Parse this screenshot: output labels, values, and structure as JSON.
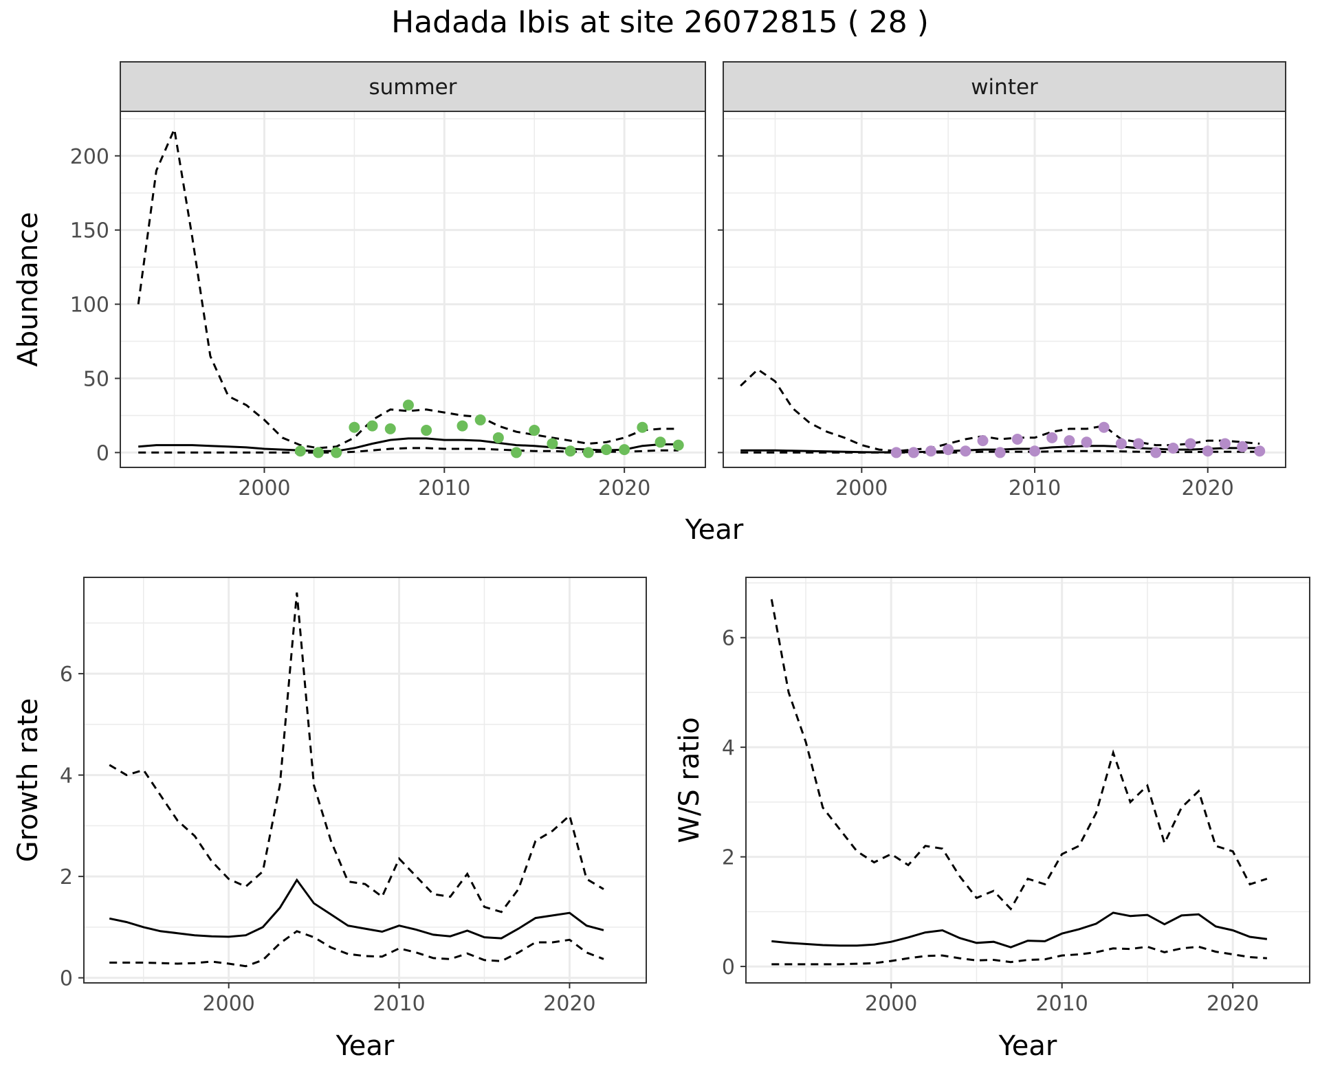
{
  "title": "Hadada Ibis at site 26072815 ( 28 )",
  "colors": {
    "summer_points": "#6cbd5a",
    "winter_points": "#b48cc8",
    "line": "#000000",
    "strip_fill": "#d9d9d9",
    "grid": "#ebebeb"
  },
  "chart_data": [
    {
      "type": "line",
      "panel": "summer",
      "strip_label": "summer",
      "xlabel": "Year",
      "ylabel": "Abundance",
      "xlim": [
        1992,
        2024.5
      ],
      "ylim": [
        -10,
        230
      ],
      "xticks": [
        2000,
        2010,
        2020
      ],
      "yticks": [
        0,
        50,
        100,
        150,
        200
      ],
      "x": [
        1993,
        1994,
        1995,
        1996,
        1997,
        1998,
        1999,
        2000,
        2001,
        2002,
        2003,
        2004,
        2005,
        2006,
        2007,
        2008,
        2009,
        2010,
        2011,
        2012,
        2013,
        2014,
        2015,
        2016,
        2017,
        2018,
        2019,
        2020,
        2021,
        2022,
        2023
      ],
      "series": [
        {
          "role": "estimate",
          "style": "solid",
          "values": [
            4,
            5,
            5,
            5,
            4.5,
            4,
            3.5,
            2.5,
            2,
            1.5,
            1,
            1,
            3,
            6,
            8.5,
            9.5,
            9.5,
            8.5,
            8.5,
            8,
            6.5,
            5,
            4.5,
            3.5,
            2.5,
            2,
            1.5,
            2,
            4.5,
            5.5,
            5.5
          ]
        },
        {
          "role": "upper",
          "style": "dashed",
          "values": [
            100,
            190,
            218,
            145,
            65,
            38,
            32,
            22,
            10,
            5,
            3,
            4,
            10,
            22,
            29,
            28,
            29,
            27,
            25,
            24,
            18,
            14,
            12,
            10,
            8,
            6,
            7,
            10,
            15,
            16,
            16
          ]
        },
        {
          "role": "lower",
          "style": "dashed",
          "values": [
            0,
            0,
            0,
            0,
            0,
            0,
            0,
            0,
            0,
            0,
            0,
            0,
            0.5,
            1.5,
            2.5,
            3,
            3,
            2.5,
            2.5,
            2.5,
            2,
            1.5,
            1,
            1,
            0.5,
            0.5,
            0.5,
            0.5,
            1,
            1.5,
            1.5
          ]
        }
      ],
      "points": {
        "x": [
          2002,
          2003,
          2004,
          2005,
          2006,
          2007,
          2008,
          2009,
          2011,
          2012,
          2013,
          2014,
          2015,
          2016,
          2017,
          2018,
          2019,
          2020,
          2021,
          2022,
          2023
        ],
        "y": [
          1,
          0,
          0,
          17,
          18,
          16,
          32,
          15,
          18,
          22,
          10,
          0,
          15,
          6,
          1,
          0,
          2,
          2,
          17,
          7,
          5
        ]
      }
    },
    {
      "type": "line",
      "panel": "winter",
      "strip_label": "winter",
      "xlabel": "Year",
      "xlim": [
        1992,
        2024.5
      ],
      "ylim": [
        -10,
        230
      ],
      "xticks": [
        2000,
        2010,
        2020
      ],
      "yticks": [
        0,
        50,
        100,
        150,
        200
      ],
      "x": [
        1993,
        1994,
        1995,
        1996,
        1997,
        1998,
        1999,
        2000,
        2001,
        2002,
        2003,
        2004,
        2005,
        2006,
        2007,
        2008,
        2009,
        2010,
        2011,
        2012,
        2013,
        2014,
        2015,
        2016,
        2017,
        2018,
        2019,
        2020,
        2021,
        2022,
        2023
      ],
      "series": [
        {
          "role": "estimate",
          "style": "solid",
          "values": [
            1.5,
            1.5,
            1.5,
            1.2,
            1,
            0.8,
            0.5,
            0.3,
            0.2,
            0.2,
            0.3,
            0.5,
            1,
            1.5,
            2,
            2,
            2.5,
            2.5,
            3.5,
            4,
            4.5,
            4.5,
            4,
            3,
            2.5,
            2,
            2,
            2.5,
            3,
            3,
            3
          ]
        },
        {
          "role": "upper",
          "style": "dashed",
          "values": [
            45,
            56,
            48,
            30,
            20,
            14,
            10,
            5,
            2,
            1,
            2,
            3,
            6,
            9,
            11,
            9,
            10,
            10,
            14,
            16,
            16,
            18,
            9,
            7,
            5,
            5,
            6,
            8,
            8,
            7,
            6
          ]
        },
        {
          "role": "lower",
          "style": "dashed",
          "values": [
            0,
            0,
            0,
            0,
            0,
            0,
            0,
            0,
            0,
            0,
            0,
            0,
            0,
            0.2,
            0.5,
            0.5,
            0.5,
            0.5,
            0.8,
            1,
            1,
            1,
            0.8,
            0.5,
            0.5,
            0.4,
            0.4,
            0.5,
            0.5,
            0.5,
            0.5
          ]
        }
      ],
      "points": {
        "x": [
          2002,
          2003,
          2004,
          2005,
          2006,
          2007,
          2008,
          2009,
          2010,
          2011,
          2012,
          2013,
          2014,
          2015,
          2016,
          2017,
          2018,
          2019,
          2020,
          2021,
          2022,
          2023
        ],
        "y": [
          0,
          0,
          1,
          2,
          1,
          8,
          0,
          9,
          1,
          10,
          8,
          7,
          17,
          6,
          6,
          0,
          3,
          6,
          1,
          6,
          4,
          1
        ]
      }
    },
    {
      "type": "line",
      "panel": "growth",
      "xlabel": "Year",
      "ylabel": "Growth rate",
      "xlim": [
        1991.5,
        2024.5
      ],
      "ylim": [
        -0.1,
        7.9
      ],
      "xticks": [
        2000,
        2010,
        2020
      ],
      "yticks": [
        0,
        2,
        4,
        6
      ],
      "x": [
        1993,
        1994,
        1995,
        1996,
        1997,
        1998,
        1999,
        2000,
        2001,
        2002,
        2003,
        2004,
        2005,
        2006,
        2007,
        2008,
        2009,
        2010,
        2011,
        2012,
        2013,
        2014,
        2015,
        2016,
        2017,
        2018,
        2019,
        2020,
        2021,
        2022
      ],
      "series": [
        {
          "role": "estimate",
          "style": "solid",
          "values": [
            1.17,
            1.1,
            1.0,
            0.92,
            0.88,
            0.84,
            0.82,
            0.81,
            0.84,
            1.0,
            1.38,
            1.93,
            1.47,
            1.25,
            1.03,
            0.97,
            0.91,
            1.03,
            0.95,
            0.85,
            0.82,
            0.93,
            0.8,
            0.78,
            0.97,
            1.18,
            1.23,
            1.28,
            1.03,
            0.94
          ]
        },
        {
          "role": "upper",
          "style": "dashed",
          "values": [
            4.2,
            4.0,
            4.1,
            3.6,
            3.1,
            2.8,
            2.3,
            1.95,
            1.8,
            2.1,
            3.8,
            7.6,
            3.8,
            2.7,
            1.9,
            1.85,
            1.6,
            2.35,
            2.0,
            1.65,
            1.6,
            2.05,
            1.4,
            1.3,
            1.75,
            2.7,
            2.9,
            3.2,
            1.95,
            1.75
          ]
        },
        {
          "role": "lower",
          "style": "dashed",
          "values": [
            0.3,
            0.3,
            0.3,
            0.29,
            0.28,
            0.29,
            0.32,
            0.28,
            0.23,
            0.35,
            0.68,
            0.92,
            0.8,
            0.6,
            0.47,
            0.43,
            0.42,
            0.58,
            0.5,
            0.39,
            0.37,
            0.48,
            0.35,
            0.33,
            0.5,
            0.7,
            0.7,
            0.75,
            0.5,
            0.37
          ]
        }
      ]
    },
    {
      "type": "line",
      "panel": "ratio",
      "xlabel": "Year",
      "ylabel": "W/S ratio",
      "xlim": [
        1991.5,
        2024.5
      ],
      "ylim": [
        -0.3,
        7.1
      ],
      "xticks": [
        2000,
        2010,
        2020
      ],
      "yticks": [
        0,
        2,
        4,
        6
      ],
      "x": [
        1993,
        1994,
        1995,
        1996,
        1997,
        1998,
        1999,
        2000,
        2001,
        2002,
        2003,
        2004,
        2005,
        2006,
        2007,
        2008,
        2009,
        2010,
        2011,
        2012,
        2013,
        2014,
        2015,
        2016,
        2017,
        2018,
        2019,
        2020,
        2021,
        2022
      ],
      "series": [
        {
          "role": "estimate",
          "style": "solid",
          "values": [
            0.46,
            0.43,
            0.41,
            0.39,
            0.38,
            0.38,
            0.4,
            0.45,
            0.53,
            0.62,
            0.66,
            0.52,
            0.43,
            0.45,
            0.35,
            0.47,
            0.46,
            0.6,
            0.68,
            0.78,
            0.98,
            0.92,
            0.94,
            0.77,
            0.93,
            0.95,
            0.73,
            0.66,
            0.54,
            0.5
          ]
        },
        {
          "role": "upper",
          "style": "dashed",
          "values": [
            6.7,
            5.0,
            4.1,
            2.9,
            2.5,
            2.1,
            1.9,
            2.05,
            1.85,
            2.2,
            2.15,
            1.65,
            1.25,
            1.38,
            1.05,
            1.6,
            1.5,
            2.05,
            2.2,
            2.8,
            3.9,
            3.0,
            3.3,
            2.25,
            2.9,
            3.2,
            2.2,
            2.1,
            1.5,
            1.6
          ]
        },
        {
          "role": "lower",
          "style": "dashed",
          "values": [
            0.04,
            0.04,
            0.04,
            0.04,
            0.04,
            0.05,
            0.06,
            0.1,
            0.15,
            0.19,
            0.2,
            0.15,
            0.11,
            0.12,
            0.08,
            0.12,
            0.13,
            0.2,
            0.22,
            0.26,
            0.33,
            0.32,
            0.36,
            0.26,
            0.33,
            0.36,
            0.27,
            0.22,
            0.17,
            0.15
          ]
        }
      ]
    }
  ]
}
